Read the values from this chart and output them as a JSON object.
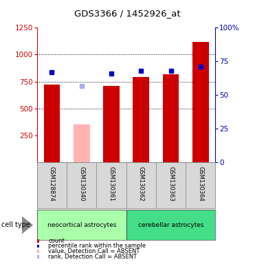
{
  "title": "GDS3366 / 1452926_at",
  "samples": [
    "GSM128874",
    "GSM130340",
    "GSM130361",
    "GSM130362",
    "GSM130363",
    "GSM130364"
  ],
  "bar_values": [
    720,
    350,
    710,
    790,
    820,
    1120
  ],
  "bar_colors": [
    "#cc0000",
    "#ffb3b3",
    "#cc0000",
    "#cc0000",
    "#cc0000",
    "#cc0000"
  ],
  "percentile_values": [
    67,
    57,
    66,
    68,
    68,
    71
  ],
  "percentile_colors": [
    "#0000cc",
    "#aaaaee",
    "#0000cc",
    "#0000cc",
    "#0000cc",
    "#0000cc"
  ],
  "ylim_left": [
    0,
    1250
  ],
  "ylim_right": [
    0,
    100
  ],
  "yticks_left": [
    250,
    500,
    750,
    1000,
    1250
  ],
  "yticks_right": [
    0,
    25,
    50,
    75,
    100
  ],
  "ytick_labels_right": [
    "0",
    "25",
    "50",
    "75",
    "100%"
  ],
  "cell_types": [
    {
      "label": "neocortical astrocytes",
      "color": "#aaffaa",
      "samples": [
        0,
        1,
        2
      ]
    },
    {
      "label": "cerebellar astrocytes",
      "color": "#44dd88",
      "samples": [
        3,
        4,
        5
      ]
    }
  ],
  "cell_type_label": "cell type",
  "legend_items": [
    {
      "color": "#cc0000",
      "label": "count"
    },
    {
      "color": "#0000cc",
      "label": "percentile rank within the sample"
    },
    {
      "color": "#ffb3b3",
      "label": "value, Detection Call = ABSENT"
    },
    {
      "color": "#aaaaee",
      "label": "rank, Detection Call = ABSENT"
    }
  ],
  "grid_yticks": [
    500,
    750,
    1000
  ],
  "left_axis_color": "#cc0000",
  "right_axis_color": "#0000bb"
}
